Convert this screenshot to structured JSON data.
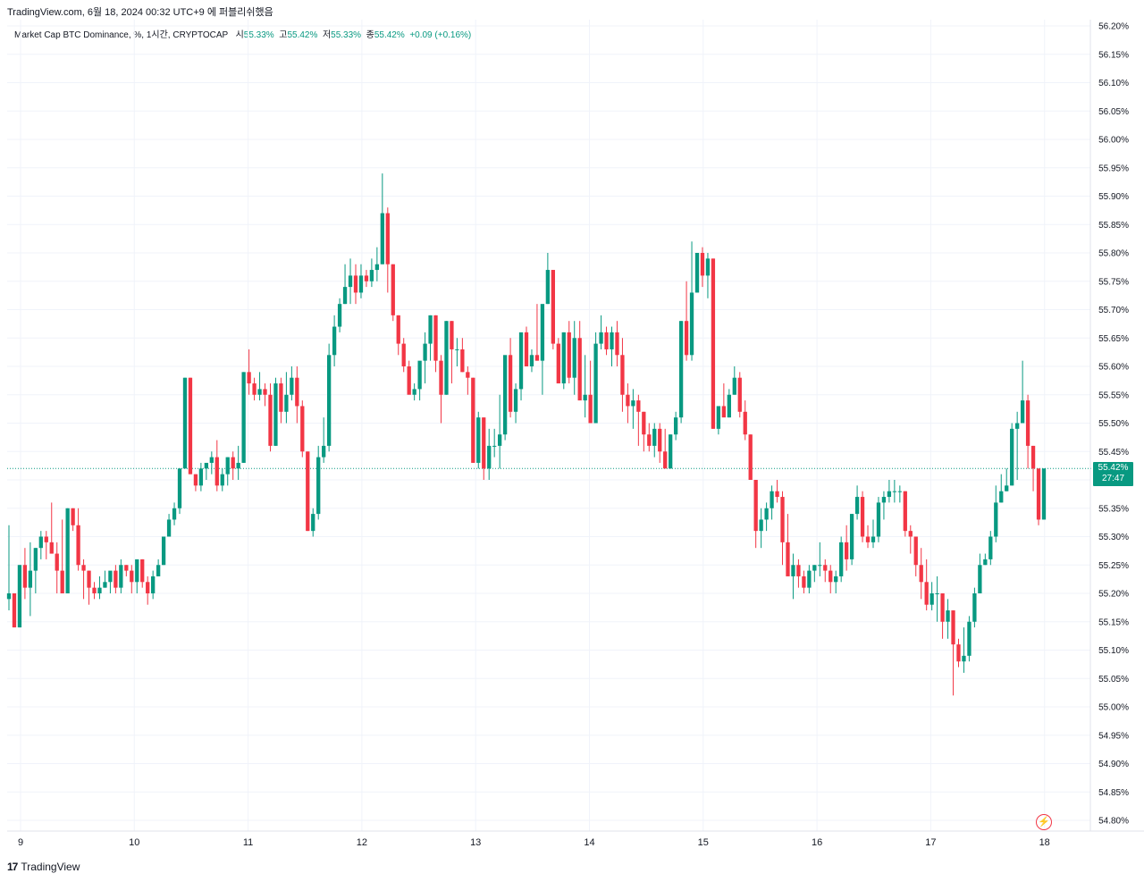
{
  "header": {
    "caption": "TradingView.com, 6월 18, 2024 00:32 UTC+9 에 퍼블리쉬했음"
  },
  "legend": {
    "symbol": "Market Cap BTC Dominance, %, 1시간, CRYPTOCAP",
    "o_label": "시",
    "o_value": "55.33%",
    "h_label": "고",
    "h_value": "55.42%",
    "l_label": "저",
    "l_value": "55.33%",
    "c_label": "종",
    "c_value": "55.42%",
    "change": "+0.09 (+0.16%)"
  },
  "price_badge": {
    "price": "55.42%",
    "countdown": "27:47"
  },
  "footer": {
    "brand": "TradingView"
  },
  "icons": {
    "flash": "flash-icon",
    "logo": "tradingview-logo-icon"
  },
  "colors": {
    "up": "#089981",
    "down": "#f23645",
    "grid": "#f0f3fa",
    "last_price_line": "#089981"
  },
  "chart_data": {
    "type": "candlestick",
    "title": "Market Cap BTC Dominance, %, 1시간, CRYPTOCAP",
    "x_tick_labels": [
      "9",
      "10",
      "11",
      "12",
      "13",
      "14",
      "15",
      "16",
      "17",
      "18"
    ],
    "y_tick_labels": [
      "56.20%",
      "56.15%",
      "56.10%",
      "56.05%",
      "56.00%",
      "55.95%",
      "55.90%",
      "55.85%",
      "55.80%",
      "55.75%",
      "55.70%",
      "55.65%",
      "55.60%",
      "55.55%",
      "55.50%",
      "55.45%",
      "55.40%",
      "55.35%",
      "55.30%",
      "55.25%",
      "55.20%",
      "55.15%",
      "55.10%",
      "55.05%",
      "55.00%",
      "54.95%",
      "54.90%",
      "54.85%",
      "54.80%"
    ],
    "ylim": [
      54.8,
      56.2
    ],
    "last_price": 55.42,
    "grid": true,
    "candles_ohlc": [
      [
        55.19,
        55.32,
        55.17,
        55.2
      ],
      [
        55.2,
        55.2,
        55.14,
        55.14
      ],
      [
        55.14,
        55.25,
        55.14,
        55.25
      ],
      [
        55.25,
        55.28,
        55.19,
        55.21
      ],
      [
        55.21,
        55.29,
        55.16,
        55.24
      ],
      [
        55.24,
        55.28,
        55.2,
        55.28
      ],
      [
        55.28,
        55.31,
        55.26,
        55.3
      ],
      [
        55.3,
        55.31,
        55.26,
        55.29
      ],
      [
        55.29,
        55.36,
        55.27,
        55.27
      ],
      [
        55.27,
        55.29,
        55.2,
        55.24
      ],
      [
        55.24,
        55.33,
        55.21,
        55.2
      ],
      [
        55.2,
        55.35,
        55.2,
        55.35
      ],
      [
        55.35,
        55.35,
        55.31,
        55.32
      ],
      [
        55.32,
        55.35,
        55.24,
        55.25
      ],
      [
        55.25,
        55.26,
        55.19,
        55.24
      ],
      [
        55.24,
        55.24,
        55.18,
        55.21
      ],
      [
        55.21,
        55.22,
        55.19,
        55.2
      ],
      [
        55.2,
        55.23,
        55.19,
        55.21
      ],
      [
        55.21,
        55.24,
        55.21,
        55.22
      ],
      [
        55.22,
        55.23,
        55.2,
        55.24
      ],
      [
        55.24,
        55.25,
        55.2,
        55.21
      ],
      [
        55.21,
        55.26,
        55.2,
        55.25
      ],
      [
        55.25,
        55.25,
        55.23,
        55.24
      ],
      [
        55.24,
        55.25,
        55.2,
        55.22
      ],
      [
        55.22,
        55.24,
        55.2,
        55.26
      ],
      [
        55.26,
        55.26,
        55.21,
        55.22
      ],
      [
        55.22,
        55.23,
        55.18,
        55.2
      ],
      [
        55.2,
        55.24,
        55.19,
        55.23
      ],
      [
        55.23,
        55.26,
        55.23,
        55.25
      ],
      [
        55.25,
        55.29,
        55.25,
        55.3
      ],
      [
        55.3,
        55.34,
        55.3,
        55.33
      ],
      [
        55.33,
        55.36,
        55.32,
        55.35
      ],
      [
        55.35,
        55.42,
        55.34,
        55.42
      ],
      [
        55.42,
        55.58,
        55.42,
        55.58
      ],
      [
        55.58,
        55.58,
        55.41,
        55.41
      ],
      [
        55.41,
        55.41,
        55.38,
        55.39
      ],
      [
        55.39,
        55.43,
        55.38,
        55.42
      ],
      [
        55.42,
        55.42,
        55.4,
        55.43
      ],
      [
        55.43,
        55.45,
        55.41,
        55.44
      ],
      [
        55.44,
        55.47,
        55.38,
        55.39
      ],
      [
        55.39,
        55.42,
        55.38,
        55.41
      ],
      [
        55.41,
        55.44,
        55.39,
        55.44
      ],
      [
        55.44,
        55.45,
        55.4,
        55.42
      ],
      [
        55.42,
        55.46,
        55.4,
        55.43
      ],
      [
        55.43,
        55.59,
        55.43,
        55.59
      ],
      [
        55.59,
        55.63,
        55.55,
        55.57
      ],
      [
        55.57,
        55.58,
        55.54,
        55.55
      ],
      [
        55.55,
        55.59,
        55.54,
        55.56
      ],
      [
        55.56,
        55.57,
        55.53,
        55.55
      ],
      [
        55.55,
        55.57,
        55.45,
        55.46
      ],
      [
        55.46,
        55.58,
        55.46,
        55.57
      ],
      [
        55.57,
        55.58,
        55.5,
        55.52
      ],
      [
        55.52,
        55.59,
        55.5,
        55.55
      ],
      [
        55.55,
        55.6,
        55.54,
        55.58
      ],
      [
        55.58,
        55.6,
        55.5,
        55.53
      ],
      [
        55.53,
        55.54,
        55.44,
        55.45
      ],
      [
        55.45,
        55.45,
        55.31,
        55.31
      ],
      [
        55.31,
        55.35,
        55.3,
        55.34
      ],
      [
        55.34,
        55.46,
        55.33,
        55.44
      ],
      [
        55.44,
        55.51,
        55.43,
        55.46
      ],
      [
        55.46,
        55.64,
        55.45,
        55.62
      ],
      [
        55.62,
        55.69,
        55.6,
        55.67
      ],
      [
        55.67,
        55.72,
        55.66,
        55.71
      ],
      [
        55.71,
        55.78,
        55.71,
        55.74
      ],
      [
        55.74,
        55.79,
        55.71,
        55.76
      ],
      [
        55.76,
        55.78,
        55.71,
        55.73
      ],
      [
        55.73,
        55.78,
        55.72,
        55.76
      ],
      [
        55.76,
        55.77,
        55.74,
        55.75
      ],
      [
        55.75,
        55.79,
        55.74,
        55.77
      ],
      [
        55.77,
        55.81,
        55.75,
        55.78
      ],
      [
        55.78,
        55.94,
        55.78,
        55.87
      ],
      [
        55.87,
        55.88,
        55.73,
        55.78
      ],
      [
        55.78,
        55.78,
        55.68,
        55.69
      ],
      [
        55.69,
        55.69,
        55.62,
        55.64
      ],
      [
        55.64,
        55.65,
        55.59,
        55.6
      ],
      [
        55.6,
        55.61,
        55.56,
        55.55
      ],
      [
        55.55,
        55.57,
        55.54,
        55.56
      ],
      [
        55.56,
        55.57,
        55.54,
        55.61
      ],
      [
        55.61,
        55.66,
        55.57,
        55.64
      ],
      [
        55.64,
        55.69,
        55.61,
        55.69
      ],
      [
        55.69,
        55.69,
        55.59,
        55.61
      ],
      [
        55.61,
        55.62,
        55.5,
        55.55
      ],
      [
        55.55,
        55.68,
        55.55,
        55.68
      ],
      [
        55.68,
        55.68,
        55.57,
        55.63
      ],
      [
        55.63,
        55.65,
        55.6,
        55.63
      ],
      [
        55.63,
        55.65,
        55.59,
        55.59
      ],
      [
        55.59,
        55.6,
        55.55,
        55.58
      ],
      [
        55.58,
        55.58,
        55.43,
        55.43
      ],
      [
        55.43,
        55.52,
        55.42,
        55.51
      ],
      [
        55.51,
        55.51,
        55.4,
        55.42
      ],
      [
        55.42,
        55.49,
        55.4,
        55.46
      ],
      [
        55.46,
        55.49,
        55.44,
        55.46
      ],
      [
        55.46,
        55.55,
        55.42,
        55.48
      ],
      [
        55.48,
        55.6,
        55.47,
        55.62
      ],
      [
        55.62,
        55.65,
        55.51,
        55.52
      ],
      [
        55.52,
        55.57,
        55.5,
        55.56
      ],
      [
        55.56,
        55.63,
        55.54,
        55.66
      ],
      [
        55.66,
        55.67,
        55.6,
        55.6
      ],
      [
        55.6,
        55.63,
        55.59,
        55.62
      ],
      [
        55.62,
        55.71,
        55.61,
        55.61
      ],
      [
        55.61,
        55.68,
        55.55,
        55.71
      ],
      [
        55.71,
        55.8,
        55.71,
        55.77
      ],
      [
        55.77,
        55.77,
        55.63,
        55.64
      ],
      [
        55.64,
        55.65,
        55.59,
        55.57
      ],
      [
        55.57,
        55.66,
        55.56,
        55.66
      ],
      [
        55.66,
        55.68,
        55.57,
        55.58
      ],
      [
        55.58,
        55.68,
        55.55,
        55.65
      ],
      [
        55.65,
        55.68,
        55.61,
        55.54
      ],
      [
        55.54,
        55.62,
        55.51,
        55.55
      ],
      [
        55.55,
        55.61,
        55.5,
        55.5
      ],
      [
        55.5,
        55.66,
        55.5,
        55.64
      ],
      [
        55.64,
        55.69,
        55.63,
        55.66
      ],
      [
        55.66,
        55.67,
        55.62,
        55.63
      ],
      [
        55.63,
        55.67,
        55.6,
        55.66
      ],
      [
        55.66,
        55.68,
        55.6,
        55.62
      ],
      [
        55.62,
        55.65,
        55.52,
        55.55
      ],
      [
        55.55,
        55.57,
        55.5,
        55.53
      ],
      [
        55.53,
        55.56,
        55.49,
        55.54
      ],
      [
        55.54,
        55.55,
        55.46,
        55.52
      ],
      [
        55.52,
        55.52,
        55.45,
        55.48
      ],
      [
        55.48,
        55.5,
        55.45,
        55.46
      ],
      [
        55.46,
        55.5,
        55.44,
        55.49
      ],
      [
        55.49,
        55.5,
        55.43,
        55.45
      ],
      [
        55.45,
        55.49,
        55.42,
        55.42
      ],
      [
        55.42,
        55.48,
        55.42,
        55.48
      ],
      [
        55.48,
        55.52,
        55.47,
        55.51
      ],
      [
        55.51,
        55.68,
        55.5,
        55.68
      ],
      [
        55.68,
        55.75,
        55.61,
        55.62
      ],
      [
        55.62,
        55.82,
        55.61,
        55.73
      ],
      [
        55.73,
        55.8,
        55.73,
        55.8
      ],
      [
        55.8,
        55.81,
        55.74,
        55.76
      ],
      [
        55.76,
        55.8,
        55.72,
        55.79
      ],
      [
        55.79,
        55.79,
        55.49,
        55.49
      ],
      [
        55.49,
        55.52,
        55.48,
        55.53
      ],
      [
        55.53,
        55.57,
        55.52,
        55.51
      ],
      [
        55.51,
        55.56,
        55.51,
        55.55
      ],
      [
        55.55,
        55.6,
        55.55,
        55.58
      ],
      [
        55.58,
        55.59,
        55.51,
        55.52
      ],
      [
        55.52,
        55.54,
        55.47,
        55.48
      ],
      [
        55.48,
        55.48,
        55.4,
        55.4
      ],
      [
        55.4,
        55.4,
        55.28,
        55.31
      ],
      [
        55.31,
        55.35,
        55.28,
        55.33
      ],
      [
        55.33,
        55.36,
        55.31,
        55.35
      ],
      [
        55.35,
        55.39,
        55.33,
        55.38
      ],
      [
        55.38,
        55.4,
        55.36,
        55.37
      ],
      [
        55.37,
        55.38,
        55.25,
        55.29
      ],
      [
        55.29,
        55.34,
        55.24,
        55.23
      ],
      [
        55.23,
        55.27,
        55.19,
        55.25
      ],
      [
        55.25,
        55.26,
        55.21,
        55.23
      ],
      [
        55.23,
        55.24,
        55.2,
        55.21
      ],
      [
        55.21,
        55.25,
        55.2,
        55.24
      ],
      [
        55.24,
        55.25,
        55.22,
        55.25
      ],
      [
        55.25,
        55.29,
        55.23,
        55.25
      ],
      [
        55.25,
        55.26,
        55.22,
        55.24
      ],
      [
        55.24,
        55.25,
        55.2,
        55.22
      ],
      [
        55.22,
        55.24,
        55.2,
        55.23
      ],
      [
        55.23,
        55.3,
        55.22,
        55.29
      ],
      [
        55.29,
        55.32,
        55.24,
        55.26
      ],
      [
        55.26,
        55.34,
        55.25,
        55.34
      ],
      [
        55.34,
        55.39,
        55.33,
        55.37
      ],
      [
        55.37,
        55.38,
        55.29,
        55.3
      ],
      [
        55.3,
        55.32,
        55.28,
        55.29
      ],
      [
        55.29,
        55.33,
        55.28,
        55.3
      ],
      [
        55.3,
        55.37,
        55.29,
        55.36
      ],
      [
        55.36,
        55.38,
        55.33,
        55.37
      ],
      [
        55.37,
        55.4,
        55.36,
        55.38
      ],
      [
        55.38,
        55.4,
        55.36,
        55.38
      ],
      [
        55.38,
        55.39,
        55.36,
        55.38
      ],
      [
        55.38,
        55.38,
        55.3,
        55.31
      ],
      [
        55.31,
        55.32,
        55.27,
        55.3
      ],
      [
        55.3,
        55.3,
        55.23,
        55.25
      ],
      [
        55.25,
        55.28,
        55.19,
        55.22
      ],
      [
        55.22,
        55.26,
        55.17,
        55.18
      ],
      [
        55.18,
        55.22,
        55.17,
        55.2
      ],
      [
        55.2,
        55.23,
        55.15,
        55.2
      ],
      [
        55.2,
        55.2,
        55.12,
        55.15
      ],
      [
        55.15,
        55.19,
        55.12,
        55.17
      ],
      [
        55.17,
        55.17,
        55.02,
        55.11
      ],
      [
        55.11,
        55.12,
        55.07,
        55.08
      ],
      [
        55.08,
        55.14,
        55.06,
        55.09
      ],
      [
        55.09,
        55.16,
        55.08,
        55.15
      ],
      [
        55.15,
        55.21,
        55.14,
        55.2
      ],
      [
        55.2,
        55.27,
        55.2,
        55.25
      ],
      [
        55.25,
        55.27,
        55.25,
        55.26
      ],
      [
        55.26,
        55.31,
        55.25,
        55.3
      ],
      [
        55.3,
        55.39,
        55.29,
        55.36
      ],
      [
        55.36,
        55.41,
        55.36,
        55.38
      ],
      [
        55.38,
        55.42,
        55.38,
        55.39
      ],
      [
        55.39,
        55.5,
        55.39,
        55.49
      ],
      [
        55.49,
        55.52,
        55.4,
        55.5
      ],
      [
        55.5,
        55.61,
        55.5,
        55.54
      ],
      [
        55.54,
        55.55,
        55.42,
        55.46
      ],
      [
        55.46,
        55.46,
        55.38,
        55.42
      ],
      [
        55.42,
        55.42,
        55.32,
        55.33
      ],
      [
        55.33,
        55.42,
        55.33,
        55.42
      ]
    ]
  }
}
